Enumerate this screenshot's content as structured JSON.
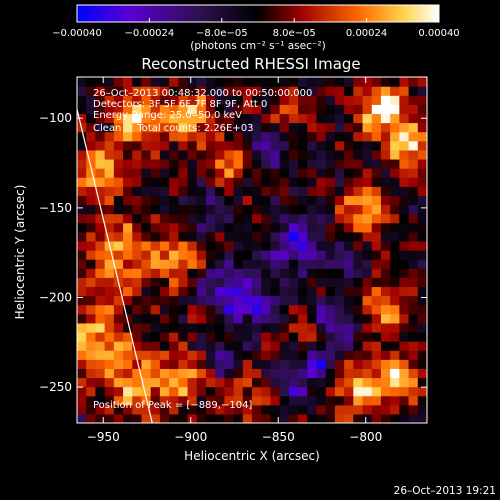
{
  "chart_data": {
    "type": "heatmap",
    "title": "Reconstructed RHESSI Image",
    "xlabel": "Heliocentric X (arcsec)",
    "ylabel": "Heliocentric Y (arcsec)",
    "xlim": [
      -965,
      -765
    ],
    "ylim": [
      -270,
      -77
    ],
    "x_ticks": [
      -950,
      -900,
      -850,
      -800
    ],
    "x_tick_labels": [
      "−950",
      "−900",
      "−850",
      "−800"
    ],
    "y_ticks": [
      -100,
      -150,
      -200,
      -250
    ],
    "y_tick_labels": [
      "−100",
      "−150",
      "−200",
      "−250"
    ],
    "colorbar": {
      "min": -0.0004,
      "max": 0.0004,
      "ticks": [
        -0.0004,
        -0.00024,
        -8e-05,
        8e-05,
        0.00024,
        0.0004
      ],
      "tick_labels": [
        "−0.00040",
        "−0.00024",
        "−8.0e−05",
        "8.0e−05",
        "0.00024",
        "0.00040"
      ],
      "unit_label": "(photons cm⁻² s⁻¹ asec⁻²)",
      "colors": [
        "#0000ff",
        "#6a00c8",
        "#1e0a28",
        "#000000",
        "#b40000",
        "#ff7a00",
        "#ffff80",
        "#ffffff"
      ]
    },
    "annotations": [
      "26–Oct–2013 00:48:32.000 to 00:50:00.000",
      "Detectors: 3F 5F 6F 7F 8F 9F, Att 0",
      "Energy Range: 25.0‒50.0 keV",
      "Clean     Total counts: 2.26E+03"
    ],
    "peak_label": "Position of Peak = [−889,−104]",
    "peak": [
      -889,
      -104
    ],
    "grid": false,
    "grid_shape": [
      38,
      38
    ],
    "intensity_note": "uses normalized intensity in [0,1] mapped to colorbar",
    "hotspots": [
      {
        "x": -930,
        "y": -100,
        "amp": 0.9,
        "r": 10
      },
      {
        "x": -952,
        "y": -130,
        "amp": 0.7,
        "r": 10
      },
      {
        "x": -940,
        "y": -175,
        "amp": 0.65,
        "r": 14
      },
      {
        "x": -955,
        "y": -225,
        "amp": 0.75,
        "r": 14
      },
      {
        "x": -930,
        "y": -250,
        "amp": 0.6,
        "r": 12
      },
      {
        "x": -908,
        "y": -180,
        "amp": 0.7,
        "r": 8
      },
      {
        "x": -900,
        "y": -100,
        "amp": 0.8,
        "r": 9
      },
      {
        "x": -878,
        "y": -125,
        "amp": 0.6,
        "r": 8
      },
      {
        "x": -890,
        "y": -210,
        "amp": 0.5,
        "r": 8
      },
      {
        "x": -905,
        "y": -245,
        "amp": 0.55,
        "r": 10
      },
      {
        "x": -870,
        "y": -255,
        "amp": 0.45,
        "r": 9
      },
      {
        "x": -790,
        "y": -95,
        "amp": 0.95,
        "r": 10
      },
      {
        "x": -775,
        "y": -115,
        "amp": 0.85,
        "r": 8
      },
      {
        "x": -800,
        "y": -150,
        "amp": 0.65,
        "r": 10
      },
      {
        "x": -790,
        "y": -205,
        "amp": 0.6,
        "r": 10
      },
      {
        "x": -805,
        "y": -250,
        "amp": 0.75,
        "r": 10
      },
      {
        "x": -780,
        "y": -245,
        "amp": 0.8,
        "r": 8
      },
      {
        "x": -830,
        "y": -220,
        "amp": 0.55,
        "r": 8
      },
      {
        "x": -845,
        "y": -95,
        "amp": 0.5,
        "r": 7
      },
      {
        "x": -860,
        "y": -160,
        "amp": 0.35,
        "r": 6
      }
    ],
    "coldspots": [
      {
        "x": -880,
        "y": -200,
        "amp": 0.9,
        "r": 12
      },
      {
        "x": -840,
        "y": -170,
        "amp": 0.7,
        "r": 12
      },
      {
        "x": -820,
        "y": -215,
        "amp": 0.9,
        "r": 9
      },
      {
        "x": -825,
        "y": -235,
        "amp": 0.8,
        "r": 7
      },
      {
        "x": -855,
        "y": -115,
        "amp": 0.55,
        "r": 9
      },
      {
        "x": -890,
        "y": -150,
        "amp": 0.45,
        "r": 8
      },
      {
        "x": -880,
        "y": -235,
        "amp": 0.5,
        "r": 7
      },
      {
        "x": -840,
        "y": -250,
        "amp": 0.5,
        "r": 8
      },
      {
        "x": -810,
        "y": -180,
        "amp": 0.5,
        "r": 6
      },
      {
        "x": -860,
        "y": -205,
        "amp": 0.55,
        "r": 7
      }
    ],
    "limb_line": {
      "x": [
        -965,
        -922
      ],
      "y": [
        -95,
        -270
      ],
      "color": "#ffffff"
    }
  },
  "timestamp": "26–Oct–2013 19:21"
}
